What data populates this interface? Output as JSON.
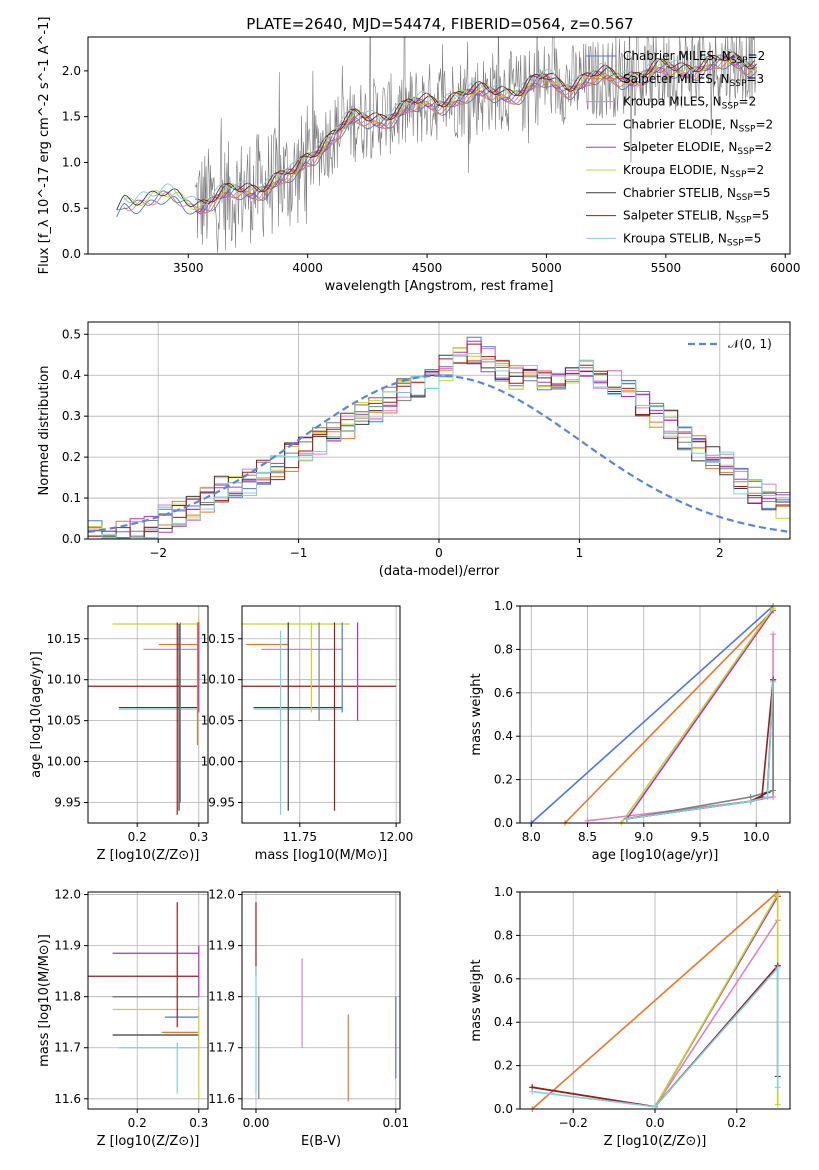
{
  "colors": [
    "#4c78dc",
    "#e8782a",
    "#e17fc7",
    "#7f7f7f",
    "#b033c6",
    "#c7d42a",
    "#3a3a3a",
    "#a01a1a",
    "#7fd0dc"
  ],
  "chart_data": [
    {
      "id": "spectrum",
      "type": "line",
      "title": "PLATE=2640, MJD=54474, FIBERID=0564, z=0.567",
      "xlabel": "wavelength [Angstrom, rest frame]",
      "ylabel": "Flux [f_λ 10^-17 erg cm^-2 s^-1 A^-1]",
      "xlim": [
        3080,
        6020
      ],
      "ylim": [
        0,
        2.37
      ],
      "xticks": [
        3500,
        4000,
        4500,
        5000,
        5500,
        6000
      ],
      "yticks": [
        0.0,
        0.5,
        1.0,
        1.5,
        2.0
      ],
      "legend_position": "top-right",
      "legend": [
        {
          "label": "Chabrier MILES, N",
          "sub": "SSP",
          "val": "=2"
        },
        {
          "label": "Salpeter MILES, N",
          "sub": "SSP",
          "val": "=3"
        },
        {
          "label": "Kroupa MILES, N",
          "sub": "SSP",
          "val": "=2"
        },
        {
          "label": "Chabrier ELODIE, N",
          "sub": "SSP",
          "val": "=2"
        },
        {
          "label": "Salpeter ELODIE, N",
          "sub": "SSP",
          "val": "=2"
        },
        {
          "label": "Kroupa ELODIE, N",
          "sub": "SSP",
          "val": "=2"
        },
        {
          "label": "Chabrier STELIB, N",
          "sub": "SSP",
          "val": "=5"
        },
        {
          "label": "Salpeter STELIB, N",
          "sub": "SSP",
          "val": "=5"
        },
        {
          "label": "Kroupa STELIB, N",
          "sub": "SSP",
          "val": "=5"
        }
      ],
      "model_continuum": {
        "x": [
          3200,
          3230,
          3300,
          3400,
          3500,
          3550,
          3650,
          3750,
          3850,
          3950,
          4000,
          4100,
          4200,
          4300,
          4400,
          4500,
          4600,
          4700,
          4800,
          4900,
          5000,
          5100,
          5200,
          5300,
          5400,
          5500,
          5600,
          5700,
          5800,
          5880
        ],
        "y": [
          0.45,
          0.58,
          0.62,
          0.6,
          0.58,
          0.56,
          0.62,
          0.7,
          0.78,
          0.85,
          1.05,
          1.3,
          1.45,
          1.5,
          1.55,
          1.65,
          1.7,
          1.72,
          1.8,
          1.75,
          1.9,
          1.85,
          1.9,
          1.95,
          1.95,
          2.0,
          2.05,
          2.05,
          2.1,
          2.1
        ]
      },
      "observed_range": [
        3530,
        5880
      ]
    },
    {
      "id": "residuals",
      "type": "step",
      "xlabel": "(data-model)/error",
      "ylabel": "Normed distribution",
      "xlim": [
        -2.5,
        2.5
      ],
      "ylim": [
        0,
        0.53
      ],
      "xticks": [
        -2,
        -1,
        0,
        1,
        2
      ],
      "yticks": [
        0.0,
        0.1,
        0.2,
        0.3,
        0.4,
        0.5
      ],
      "legend_position": "top-right",
      "legend": [
        {
          "label": "𝒩(0, 1)"
        }
      ],
      "bin_edges_start": -2.5,
      "bin_width": 0.1,
      "hist": [
        0.01,
        0.01,
        0.02,
        0.02,
        0.03,
        0.05,
        0.06,
        0.07,
        0.1,
        0.12,
        0.13,
        0.14,
        0.16,
        0.18,
        0.2,
        0.22,
        0.24,
        0.26,
        0.28,
        0.3,
        0.32,
        0.34,
        0.36,
        0.38,
        0.4,
        0.42,
        0.44,
        0.46,
        0.44,
        0.42,
        0.4,
        0.39,
        0.38,
        0.4,
        0.4,
        0.42,
        0.4,
        0.38,
        0.36,
        0.33,
        0.3,
        0.28,
        0.25,
        0.22,
        0.2,
        0.18,
        0.14,
        0.12,
        0.1,
        0.08
      ]
    },
    {
      "id": "age_vs_Z",
      "type": "errorbar",
      "xlabel": "Z [log10(Z/Z⊙)]",
      "ylabel": "age  [log10(age/yr)]",
      "xlim": [
        0.12,
        0.315
      ],
      "ylim": [
        9.925,
        10.19
      ],
      "xticks": [
        0.2,
        0.3
      ],
      "yticks": [
        9.95,
        10.0,
        10.05,
        10.1,
        10.15
      ]
    },
    {
      "id": "age_vs_mass",
      "type": "errorbar",
      "xlabel": "mass [log10(M/M⊙)]",
      "xlim": [
        11.6,
        12.01
      ],
      "ylim": [
        9.925,
        10.19
      ],
      "xticks": [
        11.75,
        12.0
      ],
      "yticks": [
        9.95,
        10.0,
        10.05,
        10.1,
        10.15
      ]
    },
    {
      "id": "weight_vs_age",
      "type": "line",
      "xlabel": "age  [log10(age/yr)]",
      "ylabel": "mass weight",
      "xlim": [
        7.9,
        10.3
      ],
      "ylim": [
        0,
        1.0
      ],
      "xticks": [
        8.0,
        8.5,
        9.0,
        9.5,
        10.0
      ],
      "yticks": [
        0.0,
        0.2,
        0.4,
        0.6,
        0.8,
        1.0
      ],
      "series": [
        {
          "x": [
            8.0,
            10.15
          ],
          "y": [
            0.0,
            1.0
          ]
        },
        {
          "x": [
            8.3,
            10.15
          ],
          "y": [
            0.0,
            0.98
          ]
        },
        {
          "x": [
            8.5,
            9.95,
            10.15,
            10.15
          ],
          "y": [
            0.01,
            0.1,
            0.12,
            0.87
          ]
        },
        {
          "x": [
            8.85,
            9.95,
            10.15,
            10.15
          ],
          "y": [
            0.02,
            0.12,
            0.15,
            0.66
          ]
        },
        {
          "x": [
            8.85,
            10.15
          ],
          "y": [
            0.02,
            0.98
          ]
        },
        {
          "x": [
            8.8,
            10.15
          ],
          "y": [
            0.0,
            0.99
          ]
        },
        {
          "x": [
            8.85,
            9.95,
            10.1,
            10.15
          ],
          "y": [
            0.02,
            0.1,
            0.14,
            0.66
          ]
        },
        {
          "x": [
            8.85,
            9.95,
            10.05,
            10.15
          ],
          "y": [
            0.02,
            0.1,
            0.12,
            0.66
          ]
        },
        {
          "x": [
            8.85,
            9.95,
            10.1,
            10.15
          ],
          "y": [
            0.02,
            0.1,
            0.12,
            0.65
          ]
        }
      ]
    },
    {
      "id": "mass_vs_Z",
      "type": "errorbar",
      "xlabel": "Z [log10(Z/Z⊙)]",
      "ylabel": "mass [log10(M/M⊙)]",
      "xlim": [
        0.12,
        0.315
      ],
      "ylim": [
        11.58,
        12.005
      ],
      "xticks": [
        0.2,
        0.3
      ],
      "yticks": [
        11.6,
        11.7,
        11.8,
        11.9,
        12.0
      ]
    },
    {
      "id": "mass_vs_ebv",
      "type": "errorbar",
      "xlabel": "E(B-V)",
      "xlim": [
        -0.001,
        0.0103
      ],
      "ylim": [
        11.58,
        12.005
      ],
      "xticks": [
        0.0,
        0.01
      ],
      "yticks": [
        11.6,
        11.7,
        11.8,
        11.9,
        12.0
      ]
    },
    {
      "id": "weight_vs_Z",
      "type": "line",
      "xlabel": "Z [log10(Z/Z⊙)]",
      "ylabel": "mass weight",
      "xlim": [
        -0.33,
        0.33
      ],
      "ylim": [
        0,
        1.0
      ],
      "xticks": [
        -0.2,
        0.0,
        0.2
      ],
      "yticks": [
        0.0,
        0.2,
        0.4,
        0.6,
        0.8,
        1.0
      ],
      "series": [
        {
          "x": [
            0.0,
            0.3
          ],
          "y": [
            0.01,
            0.98
          ]
        },
        {
          "x": [
            -0.3,
            0.3
          ],
          "y": [
            0.0,
            1.0
          ]
        },
        {
          "x": [
            0.0,
            0.3
          ],
          "y": [
            0.01,
            0.87
          ]
        },
        {
          "x": [
            0.0,
            0.3
          ],
          "y": [
            0.01,
            0.66
          ]
        },
        {
          "x": [
            0.0,
            0.3
          ],
          "y": [
            0.01,
            0.98
          ]
        },
        {
          "x": [
            0.0,
            0.3,
            0.3
          ],
          "y": [
            0.01,
            0.99,
            0.02
          ]
        },
        {
          "x": [
            -0.3,
            0.0,
            0.3,
            0.3
          ],
          "y": [
            0.1,
            0.01,
            0.66,
            0.15
          ]
        },
        {
          "x": [
            -0.3,
            0.0,
            0.3
          ],
          "y": [
            0.1,
            0.01,
            0.66
          ]
        },
        {
          "x": [
            -0.3,
            0.0,
            0.3,
            0.3
          ],
          "y": [
            0.08,
            0.01,
            0.65,
            0.1
          ]
        }
      ]
    }
  ]
}
